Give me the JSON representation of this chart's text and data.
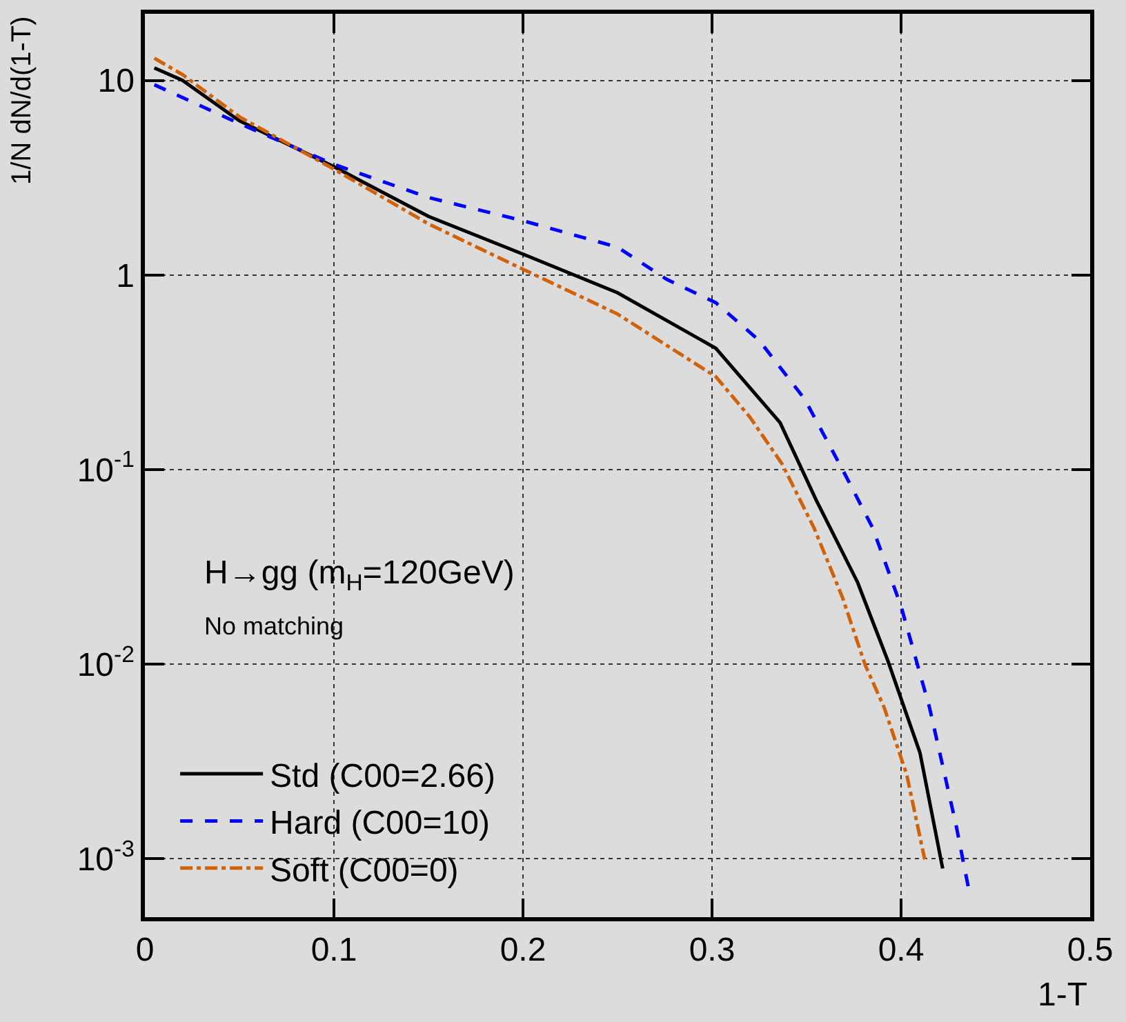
{
  "chart_data": {
    "type": "line",
    "xlabel": "1-T",
    "ylabel": "1/N dN/d(1-T)",
    "annotations": [
      "H→gg (m$_{H}$=120GeV)",
      "No matching"
    ],
    "log": "y",
    "grid": true,
    "legend": "bottom left",
    "marker": "none",
    "xlim": [
      0,
      0.5
    ],
    "xticks": [
      0,
      0.1,
      0.2,
      0.3,
      0.4,
      0.5
    ],
    "ylim": [
      0.0005,
      22
    ],
    "yticks": [
      {
        "value": 0.001,
        "label": "10$^{-3}$"
      },
      {
        "value": 0.01,
        "label": "10$^{-2}$"
      },
      {
        "value": 0.1,
        "label": "10$^{-1}$"
      },
      1,
      10
    ],
    "series": [
      {
        "name": "Std (C00=2.66)",
        "color": "#000000",
        "line_style": "solid",
        "x": [
          0.005,
          0.02,
          0.05,
          0.1,
          0.15,
          0.2,
          0.25,
          0.302,
          0.336,
          0.355,
          0.377,
          0.393,
          0.41,
          0.422
        ],
        "values": [
          11.6,
          10,
          6.2,
          3.6,
          2.0,
          1.28,
          0.81,
          0.42,
          0.174,
          0.07,
          0.0263,
          0.0104,
          0.0035,
          0.00089
        ]
      },
      {
        "name": "Hard (C00=10)",
        "color": "#0000ff",
        "line_style": "dashed",
        "x": [
          0.005,
          0.05,
          0.1,
          0.15,
          0.2,
          0.25,
          0.276,
          0.302,
          0.325,
          0.349,
          0.369,
          0.385,
          0.4,
          0.415,
          0.429,
          0.436
        ],
        "values": [
          9.5,
          6.0,
          3.7,
          2.5,
          1.9,
          1.39,
          0.95,
          0.72,
          0.46,
          0.23,
          0.1,
          0.05,
          0.0198,
          0.006,
          0.0015,
          0.00068
        ]
      },
      {
        "name": "Soft (C00=0)",
        "color": "#d2620a",
        "line_style": "dashdot",
        "x": [
          0.005,
          0.02,
          0.05,
          0.1,
          0.15,
          0.2,
          0.25,
          0.302,
          0.32,
          0.337,
          0.354,
          0.369,
          0.381,
          0.391,
          0.403,
          0.4125
        ],
        "values": [
          13,
          10.7,
          6.5,
          3.5,
          1.83,
          1.07,
          0.63,
          0.3,
          0.186,
          0.107,
          0.05,
          0.022,
          0.0099,
          0.006,
          0.0027,
          0.00099
        ]
      }
    ]
  }
}
